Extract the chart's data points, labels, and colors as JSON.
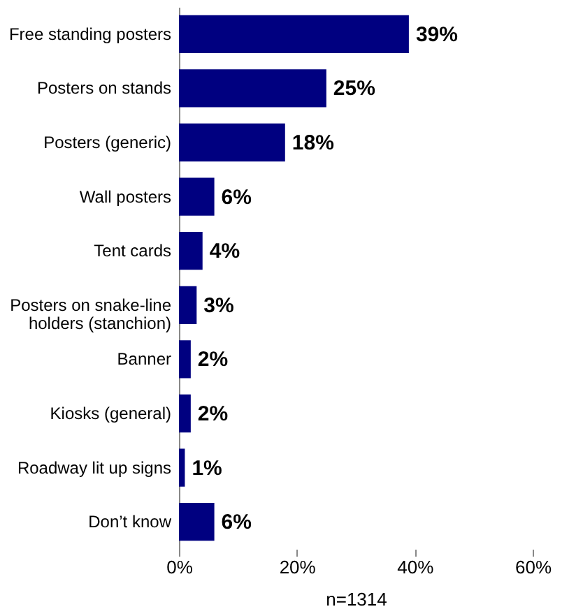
{
  "chart_data": {
    "type": "bar",
    "orientation": "horizontal",
    "xlabel": "n=1314",
    "categories": [
      "Free standing posters",
      "Posters on stands",
      "Posters (generic)",
      "Wall posters",
      "Tent cards",
      "Posters on snake-line holders (stanchion)",
      "Banner",
      "Kiosks (general)",
      "Roadway lit up signs",
      "Don’t know"
    ],
    "values": [
      39,
      25,
      18,
      6,
      4,
      3,
      2,
      2,
      1,
      6
    ],
    "value_labels": [
      "39%",
      "25%",
      "18%",
      "6%",
      "4%",
      "3%",
      "2%",
      "2%",
      "1%",
      "6%"
    ],
    "color": "#000080",
    "xlim": [
      0,
      60
    ],
    "xticks": [
      {
        "value": 0,
        "label": "0%"
      },
      {
        "value": 20,
        "label": "20%"
      },
      {
        "value": 40,
        "label": "40%"
      },
      {
        "value": 60,
        "label": "60%"
      }
    ],
    "grid": false
  }
}
